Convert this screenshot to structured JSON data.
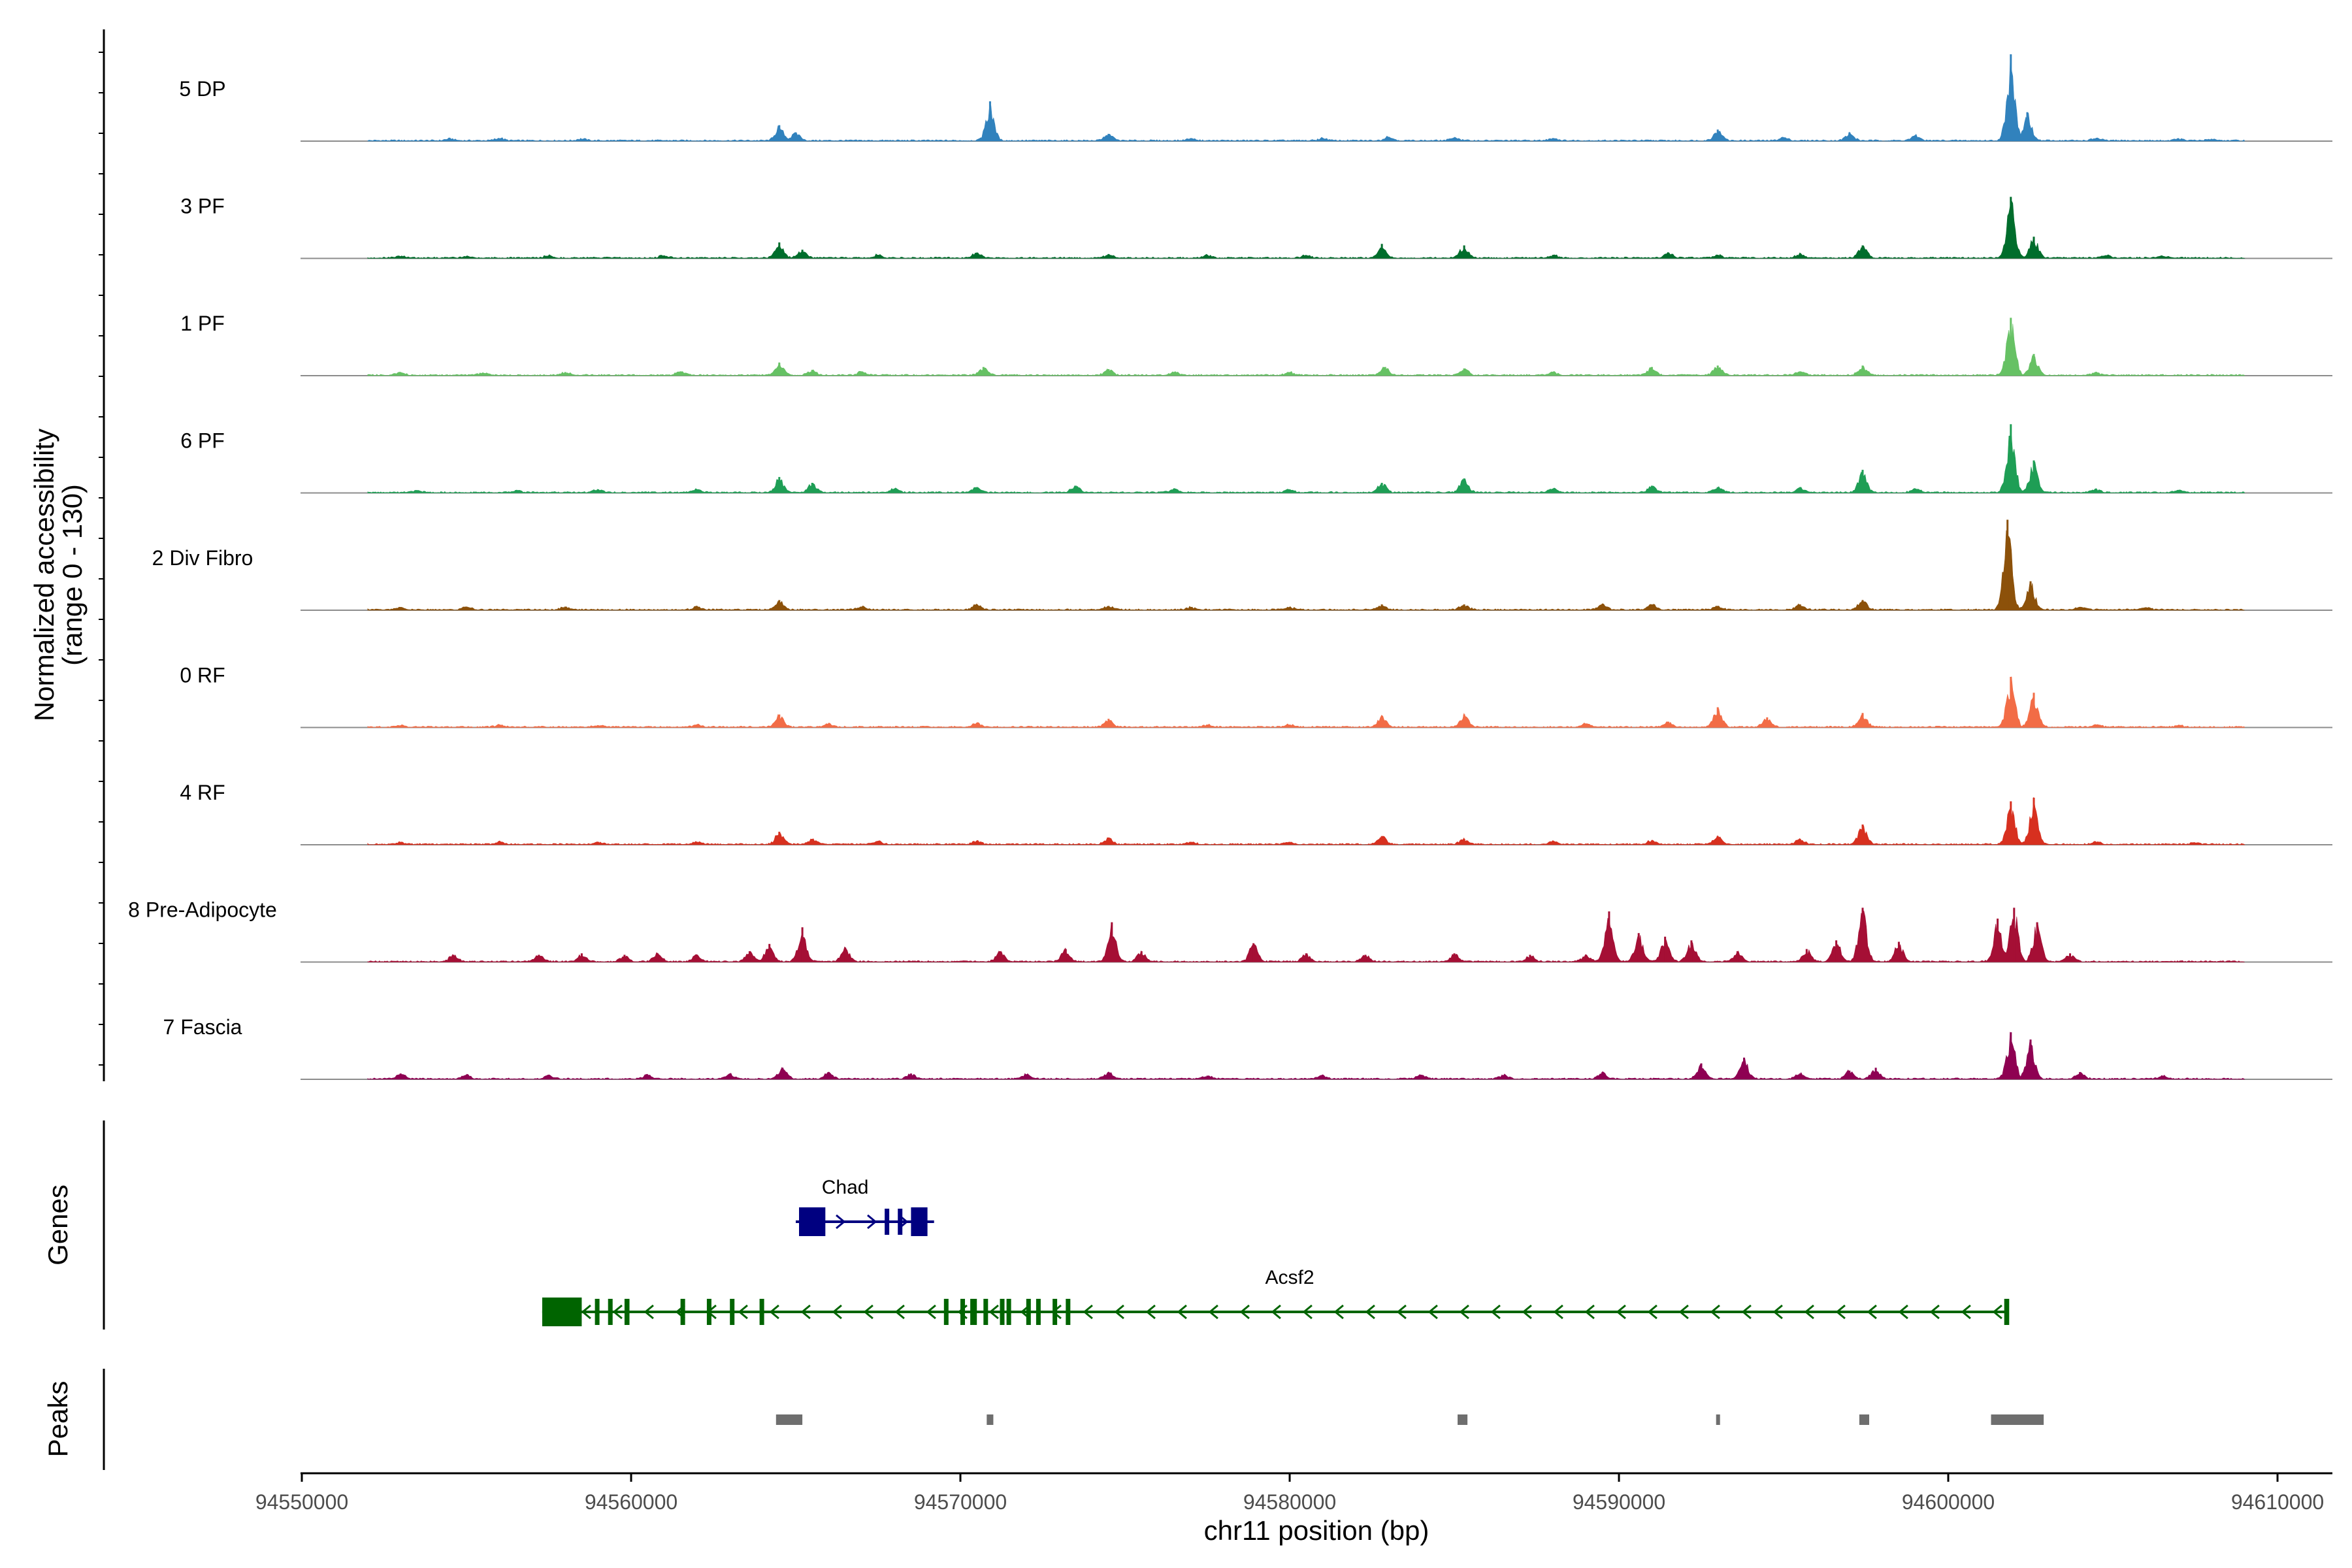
{
  "chart_data": {
    "type": "area",
    "title": "",
    "xlabel": "chr11 position (bp)",
    "ylabel": "Normalized accessibility\n(range 0 - 130)",
    "xlim": [
      94550000,
      94611000
    ],
    "ylim": [
      0,
      130
    ],
    "x_ticks": [
      94550000,
      94560000,
      94570000,
      94580000,
      94590000,
      94600000,
      94610000
    ],
    "x_tick_labels": [
      "94550000",
      "94560000",
      "94570000",
      "94580000",
      "94590000",
      "94600000",
      "94610000"
    ],
    "grid": false,
    "legend": "none",
    "tracks": [
      {
        "name": "5 DP",
        "color": "#3182BD",
        "peaks": [
          [
            94554500,
            3
          ],
          [
            94556000,
            4
          ],
          [
            94558500,
            3
          ],
          [
            94564500,
            22
          ],
          [
            94565000,
            12
          ],
          [
            94570900,
            55
          ],
          [
            94574500,
            10
          ],
          [
            94577000,
            4
          ],
          [
            94581000,
            4
          ],
          [
            94583000,
            6
          ],
          [
            94585000,
            5
          ],
          [
            94588000,
            4
          ],
          [
            94593000,
            16
          ],
          [
            94595000,
            5
          ],
          [
            94597000,
            12
          ],
          [
            94599000,
            8
          ],
          [
            94601900,
            120
          ],
          [
            94602400,
            40
          ],
          [
            94604500,
            4
          ],
          [
            94607000,
            3
          ],
          [
            94608000,
            3
          ]
        ]
      },
      {
        "name": "3 PF",
        "color": "#006D2C",
        "peaks": [
          [
            94553000,
            3
          ],
          [
            94555000,
            3
          ],
          [
            94557500,
            4
          ],
          [
            94561000,
            4
          ],
          [
            94564500,
            22
          ],
          [
            94565200,
            12
          ],
          [
            94567500,
            5
          ],
          [
            94570500,
            8
          ],
          [
            94574500,
            6
          ],
          [
            94577500,
            4
          ],
          [
            94580500,
            4
          ],
          [
            94582800,
            20
          ],
          [
            94585300,
            18
          ],
          [
            94588000,
            5
          ],
          [
            94591500,
            8
          ],
          [
            94593000,
            5
          ],
          [
            94595500,
            6
          ],
          [
            94597400,
            18
          ],
          [
            94601900,
            85
          ],
          [
            94602600,
            30
          ],
          [
            94604800,
            4
          ],
          [
            94606500,
            3
          ]
        ]
      },
      {
        "name": "1 PF",
        "color": "#66C164",
        "peaks": [
          [
            94553000,
            4
          ],
          [
            94555500,
            4
          ],
          [
            94558000,
            5
          ],
          [
            94561500,
            6
          ],
          [
            94564500,
            18
          ],
          [
            94565500,
            8
          ],
          [
            94567000,
            6
          ],
          [
            94570700,
            12
          ],
          [
            94574500,
            9
          ],
          [
            94576500,
            5
          ],
          [
            94580000,
            5
          ],
          [
            94582900,
            12
          ],
          [
            94585300,
            10
          ],
          [
            94588000,
            5
          ],
          [
            94591000,
            12
          ],
          [
            94593000,
            14
          ],
          [
            94595500,
            6
          ],
          [
            94597400,
            14
          ],
          [
            94601900,
            80
          ],
          [
            94602600,
            30
          ],
          [
            94604500,
            4
          ]
        ]
      },
      {
        "name": "6 PF",
        "color": "#1E9E55",
        "peaks": [
          [
            94553500,
            3
          ],
          [
            94556500,
            4
          ],
          [
            94559000,
            5
          ],
          [
            94562000,
            5
          ],
          [
            94564500,
            22
          ],
          [
            94565500,
            14
          ],
          [
            94568000,
            6
          ],
          [
            94570500,
            8
          ],
          [
            94573500,
            10
          ],
          [
            94576500,
            6
          ],
          [
            94580000,
            5
          ],
          [
            94582800,
            14
          ],
          [
            94585300,
            20
          ],
          [
            94588000,
            6
          ],
          [
            94591000,
            10
          ],
          [
            94593000,
            8
          ],
          [
            94595500,
            8
          ],
          [
            94597400,
            32
          ],
          [
            94599000,
            6
          ],
          [
            94601900,
            95
          ],
          [
            94602600,
            45
          ],
          [
            94604500,
            5
          ],
          [
            94607000,
            4
          ]
        ]
      },
      {
        "name": "2 Div Fibro",
        "color": "#8C510A",
        "peaks": [
          [
            94553000,
            4
          ],
          [
            94555000,
            5
          ],
          [
            94558000,
            5
          ],
          [
            94562000,
            5
          ],
          [
            94564500,
            14
          ],
          [
            94567000,
            5
          ],
          [
            94570500,
            8
          ],
          [
            94574500,
            6
          ],
          [
            94577000,
            4
          ],
          [
            94580000,
            4
          ],
          [
            94582800,
            8
          ],
          [
            94585300,
            8
          ],
          [
            94589500,
            8
          ],
          [
            94591000,
            8
          ],
          [
            94593000,
            6
          ],
          [
            94595500,
            8
          ],
          [
            94597400,
            14
          ],
          [
            94601800,
            125
          ],
          [
            94602500,
            40
          ],
          [
            94604000,
            4
          ],
          [
            94606000,
            3
          ]
        ]
      },
      {
        "name": "0 RF",
        "color": "#F26C46",
        "peaks": [
          [
            94553000,
            3
          ],
          [
            94556000,
            3
          ],
          [
            94559000,
            3
          ],
          [
            94562000,
            4
          ],
          [
            94564500,
            18
          ],
          [
            94566000,
            5
          ],
          [
            94570500,
            6
          ],
          [
            94574500,
            12
          ],
          [
            94577500,
            4
          ],
          [
            94580000,
            4
          ],
          [
            94582800,
            16
          ],
          [
            94585300,
            18
          ],
          [
            94589000,
            5
          ],
          [
            94591500,
            8
          ],
          [
            94593000,
            28
          ],
          [
            94594500,
            14
          ],
          [
            94597400,
            20
          ],
          [
            94601900,
            70
          ],
          [
            94602600,
            48
          ],
          [
            94604500,
            4
          ],
          [
            94607000,
            3
          ]
        ]
      },
      {
        "name": "4 RF",
        "color": "#D7301F",
        "peaks": [
          [
            94553000,
            3
          ],
          [
            94556000,
            4
          ],
          [
            94559000,
            4
          ],
          [
            94562000,
            4
          ],
          [
            94564500,
            18
          ],
          [
            94565500,
            8
          ],
          [
            94567500,
            5
          ],
          [
            94570500,
            5
          ],
          [
            94574500,
            10
          ],
          [
            94577000,
            4
          ],
          [
            94580000,
            4
          ],
          [
            94582800,
            12
          ],
          [
            94585300,
            8
          ],
          [
            94588000,
            4
          ],
          [
            94591000,
            6
          ],
          [
            94593000,
            12
          ],
          [
            94595500,
            8
          ],
          [
            94597400,
            28
          ],
          [
            94601900,
            60
          ],
          [
            94602600,
            65
          ],
          [
            94604500,
            4
          ],
          [
            94607500,
            3
          ]
        ]
      },
      {
        "name": "8 Pre-Adipocyte",
        "color": "#A50F35",
        "peaks": [
          [
            94554600,
            10
          ],
          [
            94557200,
            10
          ],
          [
            94558500,
            12
          ],
          [
            94559800,
            10
          ],
          [
            94560800,
            12
          ],
          [
            94562000,
            10
          ],
          [
            94563600,
            15
          ],
          [
            94564200,
            25
          ],
          [
            94565200,
            48
          ],
          [
            94566500,
            20
          ],
          [
            94571200,
            15
          ],
          [
            94573200,
            18
          ],
          [
            94574600,
            55
          ],
          [
            94575500,
            15
          ],
          [
            94578900,
            26
          ],
          [
            94580500,
            12
          ],
          [
            94582300,
            10
          ],
          [
            94585000,
            12
          ],
          [
            94587300,
            10
          ],
          [
            94589000,
            10
          ],
          [
            94589700,
            70
          ],
          [
            94590600,
            40
          ],
          [
            94591400,
            35
          ],
          [
            94592200,
            30
          ],
          [
            94593600,
            15
          ],
          [
            94595700,
            18
          ],
          [
            94596600,
            30
          ],
          [
            94597400,
            75
          ],
          [
            94598500,
            28
          ],
          [
            94601500,
            60
          ],
          [
            94602000,
            75
          ],
          [
            94602700,
            55
          ],
          [
            94603700,
            12
          ]
        ]
      },
      {
        "name": "7 Fascia",
        "color": "#8E0152",
        "peaks": [
          [
            94553000,
            8
          ],
          [
            94555000,
            6
          ],
          [
            94557500,
            5
          ],
          [
            94560500,
            6
          ],
          [
            94563000,
            8
          ],
          [
            94564600,
            16
          ],
          [
            94566000,
            10
          ],
          [
            94568500,
            8
          ],
          [
            94572000,
            7
          ],
          [
            94574500,
            10
          ],
          [
            94577500,
            5
          ],
          [
            94581000,
            5
          ],
          [
            94584000,
            6
          ],
          [
            94586500,
            6
          ],
          [
            94589500,
            10
          ],
          [
            94592500,
            22
          ],
          [
            94593800,
            30
          ],
          [
            94595500,
            8
          ],
          [
            94597000,
            12
          ],
          [
            94597800,
            16
          ],
          [
            94601900,
            65
          ],
          [
            94602500,
            55
          ],
          [
            94604000,
            10
          ],
          [
            94606500,
            5
          ]
        ]
      }
    ],
    "genes": [
      {
        "name": "Chad",
        "color": "#000080",
        "strand": "+",
        "start": 94565000,
        "end": 94569200,
        "exons": [
          [
            94565100,
            94565900
          ],
          [
            94567700,
            94567800
          ],
          [
            94568100,
            94568200
          ],
          [
            94568500,
            94569000
          ]
        ]
      },
      {
        "name": "Acsf2",
        "color": "#006400",
        "strand": "-",
        "start": 94557300,
        "end": 94601800,
        "exons": [
          [
            94557300,
            94558500
          ],
          [
            94558900,
            94559000
          ],
          [
            94559300,
            94559400
          ],
          [
            94559800,
            94559950
          ],
          [
            94561500,
            94561600
          ],
          [
            94562300,
            94562400
          ],
          [
            94563000,
            94563100
          ],
          [
            94563900,
            94564000
          ],
          [
            94569500,
            94569600
          ],
          [
            94570000,
            94570100
          ],
          [
            94570300,
            94570500
          ],
          [
            94570700,
            94570800
          ],
          [
            94571200,
            94571300
          ],
          [
            94571400,
            94571500
          ],
          [
            94572000,
            94572100
          ],
          [
            94572300,
            94572400
          ],
          [
            94572800,
            94572900
          ],
          [
            94573200,
            94573300
          ],
          [
            94601700,
            94601850
          ]
        ]
      }
    ],
    "peaks_track": [
      [
        94564400,
        94565200
      ],
      [
        94570800,
        94571000
      ],
      [
        94585100,
        94585400
      ],
      [
        94592950,
        94593050
      ],
      [
        94597300,
        94597600
      ],
      [
        94601300,
        94602900
      ]
    ],
    "panel_labels": [
      "Genes",
      "Peaks"
    ]
  }
}
